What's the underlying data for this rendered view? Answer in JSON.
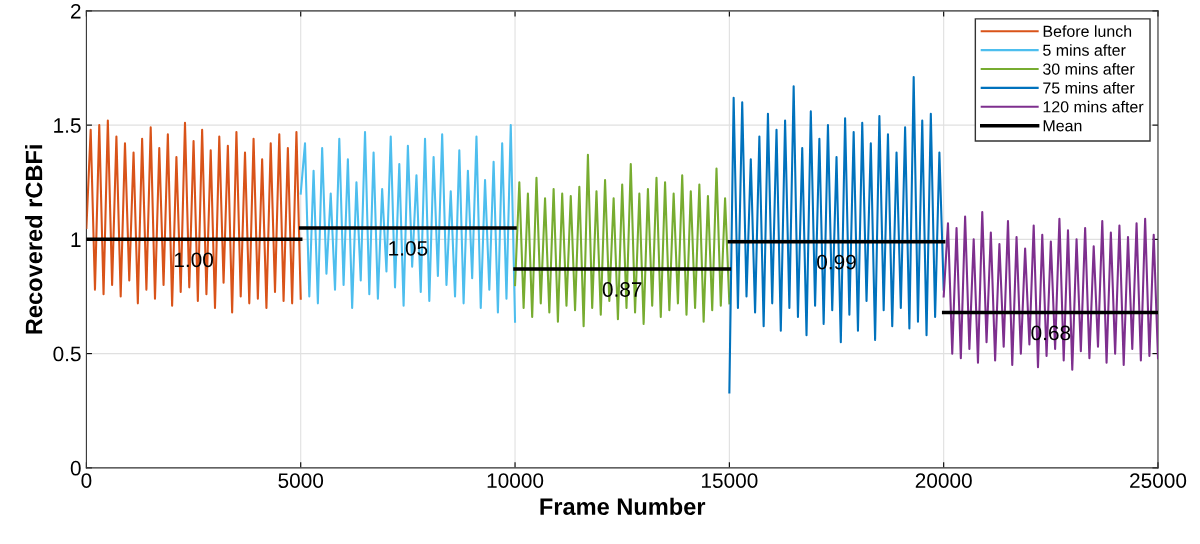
{
  "chart_data": {
    "type": "line",
    "xlabel": "Frame Number",
    "ylabel": "Recovered rCBFi",
    "xlim": [
      0,
      25000
    ],
    "ylim": [
      0,
      2
    ],
    "xticks": [
      0,
      5000,
      10000,
      15000,
      20000,
      25000
    ],
    "yticks": [
      0,
      0.5,
      1,
      1.5,
      2
    ],
    "grid": true,
    "legend": "top right",
    "marker": "none",
    "line_style": "solid",
    "series": [
      {
        "name": "Before lunch",
        "color": "#d95319",
        "x": [
          0,
          100,
          200,
          300,
          400,
          500,
          600,
          700,
          800,
          900,
          1000,
          1100,
          1200,
          1300,
          1400,
          1500,
          1600,
          1700,
          1800,
          1900,
          2000,
          2100,
          2200,
          2300,
          2400,
          2500,
          2600,
          2700,
          2800,
          2900,
          3000,
          3100,
          3200,
          3300,
          3400,
          3500,
          3600,
          3700,
          3800,
          3900,
          4000,
          4100,
          4200,
          4300,
          4400,
          4500,
          4600,
          4700,
          4800,
          4900,
          5000
        ],
        "values": [
          1.05,
          1.48,
          0.78,
          1.5,
          0.76,
          1.52,
          0.8,
          1.45,
          0.75,
          1.42,
          0.82,
          1.38,
          0.72,
          1.44,
          0.78,
          1.49,
          0.74,
          1.4,
          0.8,
          1.46,
          0.71,
          1.36,
          0.77,
          1.51,
          0.79,
          1.43,
          0.73,
          1.48,
          0.76,
          1.39,
          0.7,
          1.45,
          0.81,
          1.41,
          0.68,
          1.47,
          0.75,
          1.38,
          0.72,
          1.44,
          0.74,
          1.35,
          0.7,
          1.42,
          0.77,
          1.46,
          0.73,
          1.4,
          0.72,
          1.47,
          0.74
        ]
      },
      {
        "name": "5 mins after",
        "color": "#4dbeee",
        "x": [
          5000,
          5100,
          5200,
          5300,
          5400,
          5500,
          5600,
          5700,
          5800,
          5900,
          6000,
          6100,
          6200,
          6300,
          6400,
          6500,
          6600,
          6700,
          6800,
          6900,
          7000,
          7100,
          7200,
          7300,
          7400,
          7500,
          7600,
          7700,
          7800,
          7900,
          8000,
          8100,
          8200,
          8300,
          8400,
          8500,
          8600,
          8700,
          8800,
          8900,
          9000,
          9100,
          9200,
          9300,
          9400,
          9500,
          9600,
          9700,
          9800,
          9900,
          10000
        ],
        "values": [
          1.2,
          1.42,
          0.75,
          1.3,
          0.72,
          1.4,
          0.85,
          1.2,
          0.78,
          1.44,
          0.8,
          1.35,
          0.7,
          1.25,
          0.82,
          1.47,
          0.76,
          1.38,
          0.74,
          1.22,
          0.86,
          1.45,
          0.79,
          1.33,
          0.71,
          1.41,
          0.88,
          1.28,
          0.77,
          1.44,
          0.73,
          1.36,
          0.84,
          1.46,
          0.8,
          1.21,
          0.75,
          1.39,
          0.72,
          1.3,
          0.83,
          1.45,
          0.7,
          1.26,
          0.78,
          1.34,
          0.68,
          1.42,
          0.74,
          1.5,
          0.64
        ]
      },
      {
        "name": "30 mins after",
        "color": "#77ac30",
        "x": [
          10000,
          10100,
          10200,
          10300,
          10400,
          10500,
          10600,
          10700,
          10800,
          10900,
          11000,
          11100,
          11200,
          11300,
          11400,
          11500,
          11600,
          11700,
          11800,
          11900,
          12000,
          12100,
          12200,
          12300,
          12400,
          12500,
          12600,
          12700,
          12800,
          12900,
          13000,
          13100,
          13200,
          13300,
          13400,
          13500,
          13600,
          13700,
          13800,
          13900,
          14000,
          14100,
          14200,
          14300,
          14400,
          14500,
          14600,
          14700,
          14800,
          14900,
          15000
        ],
        "values": [
          0.8,
          1.25,
          0.7,
          1.2,
          0.66,
          1.27,
          0.72,
          1.18,
          0.68,
          1.22,
          0.64,
          1.2,
          0.71,
          1.19,
          0.69,
          1.23,
          0.62,
          1.37,
          0.7,
          1.21,
          0.67,
          1.26,
          0.73,
          1.18,
          0.65,
          1.24,
          0.7,
          1.33,
          0.68,
          1.2,
          0.63,
          1.22,
          0.71,
          1.27,
          0.66,
          1.25,
          0.69,
          1.2,
          0.72,
          1.28,
          0.67,
          1.21,
          0.7,
          1.24,
          0.64,
          1.19,
          0.69,
          1.31,
          0.71,
          1.18,
          0.72
        ]
      },
      {
        "name": "75 mins after",
        "color": "#0072bd",
        "x": [
          15000,
          15100,
          15200,
          15300,
          15400,
          15500,
          15600,
          15700,
          15800,
          15900,
          16000,
          16100,
          16200,
          16300,
          16400,
          16500,
          16600,
          16700,
          16800,
          16900,
          17000,
          17100,
          17200,
          17300,
          17400,
          17500,
          17600,
          17700,
          17800,
          17900,
          18000,
          18100,
          18200,
          18300,
          18400,
          18500,
          18600,
          18700,
          18800,
          18900,
          19000,
          19100,
          19200,
          19300,
          19400,
          19500,
          19600,
          19700,
          19800,
          19900,
          20000
        ],
        "values": [
          0.33,
          1.62,
          0.7,
          1.6,
          0.75,
          1.35,
          0.68,
          1.45,
          0.62,
          1.55,
          0.72,
          1.48,
          0.6,
          1.52,
          0.7,
          1.67,
          0.66,
          1.4,
          0.58,
          1.56,
          0.71,
          1.44,
          0.63,
          1.5,
          0.69,
          1.36,
          0.55,
          1.53,
          0.67,
          1.47,
          0.6,
          1.51,
          0.73,
          1.42,
          0.56,
          1.54,
          0.69,
          1.46,
          0.62,
          1.38,
          0.7,
          1.49,
          0.61,
          1.71,
          0.64,
          1.52,
          0.58,
          1.55,
          0.66,
          1.38,
          0.78
        ]
      },
      {
        "name": "120 mins after",
        "color": "#7e2f8e",
        "x": [
          20000,
          20100,
          20200,
          20300,
          20400,
          20500,
          20600,
          20700,
          20800,
          20900,
          21000,
          21100,
          21200,
          21300,
          21400,
          21500,
          21600,
          21700,
          21800,
          21900,
          22000,
          22100,
          22200,
          22300,
          22400,
          22500,
          22600,
          22700,
          22800,
          22900,
          23000,
          23100,
          23200,
          23300,
          23400,
          23500,
          23600,
          23700,
          23800,
          23900,
          24000,
          24100,
          24200,
          24300,
          24400,
          24500,
          24600,
          24700,
          24800,
          24900,
          25000
        ],
        "values": [
          0.75,
          1.07,
          0.5,
          1.05,
          0.48,
          1.1,
          0.52,
          1.0,
          0.46,
          1.12,
          0.55,
          1.03,
          0.47,
          0.98,
          0.53,
          1.08,
          0.45,
          1.01,
          0.5,
          0.96,
          0.54,
          1.06,
          0.44,
          1.02,
          0.49,
          0.99,
          0.52,
          1.09,
          0.47,
          1.04,
          0.43,
          1.0,
          0.51,
          1.05,
          0.48,
          0.97,
          0.53,
          1.08,
          0.46,
          1.03,
          0.5,
          1.06,
          0.45,
          1.01,
          0.52,
          1.07,
          0.47,
          1.09,
          0.49,
          1.02,
          0.48
        ]
      },
      {
        "name": "Mean",
        "color": "#000000",
        "x": [
          0,
          5000
        ],
        "values": [
          1.0,
          1.0
        ]
      },
      {
        "color": "#000000",
        "x": [
          5000,
          10000
        ],
        "values": [
          1.05,
          1.05
        ]
      },
      {
        "color": "#000000",
        "x": [
          10000,
          15000
        ],
        "values": [
          0.87,
          0.87
        ]
      },
      {
        "color": "#000000",
        "x": [
          15000,
          20000
        ],
        "values": [
          0.99,
          0.99
        ]
      },
      {
        "color": "#000000",
        "x": [
          20000,
          25000
        ],
        "values": [
          0.68,
          0.68
        ]
      }
    ],
    "annotations": [
      {
        "text": "1.00",
        "x": 2500,
        "y": 1.0
      },
      {
        "text": "1.05",
        "x": 7500,
        "y": 1.05
      },
      {
        "text": "0.87",
        "x": 12500,
        "y": 0.87
      },
      {
        "text": "0.99",
        "x": 17500,
        "y": 0.99
      },
      {
        "text": "0.68",
        "x": 22500,
        "y": 0.68
      }
    ]
  }
}
